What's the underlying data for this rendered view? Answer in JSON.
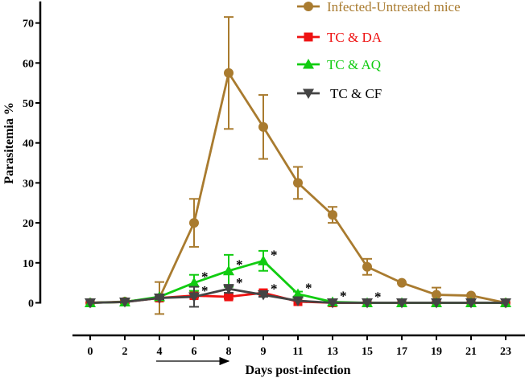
{
  "chart_data": {
    "type": "line",
    "title": "",
    "xlabel": "Days post-infection",
    "ylabel": "Parasitemia %",
    "x": [
      0,
      2,
      4,
      6,
      8,
      9,
      11,
      13,
      15,
      17,
      19,
      21,
      23
    ],
    "x_tick_labels": [
      "0",
      "2",
      "4",
      "6",
      "8",
      "9",
      "11",
      "13",
      "15",
      "17",
      "19",
      "21",
      "23"
    ],
    "y_ticks": [
      0,
      10,
      20,
      30,
      40,
      50,
      60,
      70
    ],
    "ylim": [
      0,
      75
    ],
    "grid": false,
    "legend_position": "top-right",
    "significance_marker": "*",
    "treatment_period": [
      4,
      8
    ],
    "series": [
      {
        "name": "Infected-Untreated mice",
        "color": "#A97B2F",
        "marker": "circle",
        "values": [
          0,
          0.3,
          1.2,
          20,
          57.5,
          44,
          30,
          22,
          9,
          5,
          2,
          1.8,
          0
        ],
        "errors": [
          0,
          0.4,
          4,
          6,
          14,
          8,
          4,
          2,
          2,
          0,
          1.8,
          0,
          0
        ],
        "significant": [
          false,
          false,
          false,
          false,
          false,
          false,
          false,
          false,
          false,
          false,
          false,
          false,
          false
        ]
      },
      {
        "name": "TC & DA",
        "color": "#EE1111",
        "marker": "square",
        "values": [
          0,
          0.2,
          1.2,
          1.8,
          1.5,
          2.5,
          0.3,
          0,
          0,
          0,
          0,
          0,
          0
        ],
        "errors": [
          0,
          0,
          0,
          0.5,
          0.5,
          0.5,
          0,
          0,
          0,
          0,
          0,
          0,
          0
        ],
        "significant": [
          false,
          false,
          false,
          false,
          false,
          false,
          false,
          false,
          false,
          false,
          false,
          false,
          false
        ]
      },
      {
        "name": "TC & AQ",
        "color": "#11CC11",
        "marker": "triangle-up",
        "values": [
          0,
          0.2,
          1.5,
          5,
          8,
          10.5,
          2.2,
          0.2,
          0,
          0,
          0,
          0,
          0
        ],
        "errors": [
          0,
          0,
          0.5,
          2,
          4,
          2.5,
          0.6,
          0,
          0,
          0,
          0,
          0,
          0
        ],
        "significant": [
          false,
          false,
          false,
          true,
          true,
          true,
          true,
          true,
          true,
          false,
          false,
          false,
          false
        ]
      },
      {
        "name": "TC & CF",
        "color": "#444444",
        "marker": "triangle-down",
        "values": [
          0,
          0.2,
          1.2,
          1.5,
          3.5,
          2,
          0.5,
          0,
          0,
          0,
          0,
          0,
          0
        ],
        "errors": [
          0,
          0,
          0.3,
          2.5,
          1,
          0.5,
          0,
          0,
          0,
          0,
          0,
          0,
          0
        ],
        "significant": [
          false,
          false,
          false,
          true,
          true,
          true,
          false,
          false,
          false,
          false,
          false,
          false,
          false
        ]
      }
    ]
  }
}
